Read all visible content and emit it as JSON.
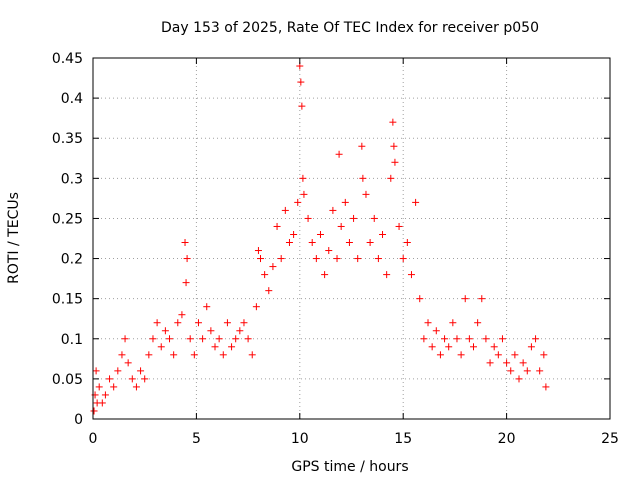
{
  "chart_data": {
    "type": "scatter",
    "title": "Day 153 of 2025, Rate Of TEC Index for receiver p050",
    "xlabel": "GPS time / hours",
    "ylabel": "ROTI / TECUs",
    "xlim": [
      0,
      25
    ],
    "ylim": [
      0,
      0.45
    ],
    "xticks": [
      0,
      5,
      10,
      15,
      20,
      25
    ],
    "xtick_labels": [
      "0",
      "5",
      "10",
      "15",
      "20",
      "25"
    ],
    "yticks": [
      0,
      0.05,
      0.1,
      0.15,
      0.2,
      0.25,
      0.3,
      0.35,
      0.4,
      0.45
    ],
    "ytick_labels": [
      "0",
      "0.05",
      "0.1",
      "0.15",
      "0.2",
      "0.25",
      "0.3",
      "0.35",
      "0.4",
      "0.45"
    ],
    "grid": true,
    "marker": "+",
    "color": "#ff0000",
    "series": [
      {
        "name": "ROTI",
        "x": [
          0.05,
          0.1,
          0.15,
          0.2,
          0.3,
          0.45,
          0.6,
          0.8,
          1.0,
          1.2,
          1.4,
          1.55,
          1.7,
          1.9,
          2.1,
          2.3,
          2.5,
          2.7,
          2.9,
          3.1,
          3.3,
          3.5,
          3.7,
          3.9,
          4.1,
          4.3,
          4.45,
          4.5,
          4.55,
          4.7,
          4.9,
          5.1,
          5.3,
          5.5,
          5.7,
          5.9,
          6.1,
          6.3,
          6.5,
          6.7,
          6.9,
          7.1,
          7.3,
          7.5,
          7.7,
          7.9,
          8.0,
          8.1,
          8.3,
          8.5,
          8.7,
          8.9,
          9.1,
          9.3,
          9.5,
          9.7,
          9.9,
          10.0,
          10.05,
          10.1,
          10.15,
          10.2,
          10.4,
          10.6,
          10.8,
          11.0,
          11.2,
          11.4,
          11.6,
          11.8,
          11.9,
          12.0,
          12.2,
          12.4,
          12.6,
          12.8,
          13.0,
          13.05,
          13.2,
          13.4,
          13.6,
          13.8,
          14.0,
          14.2,
          14.4,
          14.5,
          14.55,
          14.6,
          14.8,
          15.0,
          15.2,
          15.4,
          15.6,
          15.8,
          16.0,
          16.2,
          16.4,
          16.6,
          16.8,
          17.0,
          17.2,
          17.4,
          17.6,
          17.8,
          18.0,
          18.2,
          18.4,
          18.6,
          18.8,
          19.0,
          19.2,
          19.4,
          19.6,
          19.8,
          20.0,
          20.2,
          20.4,
          20.6,
          20.8,
          21.0,
          21.2,
          21.4,
          21.6,
          21.8,
          21.9
        ],
        "y": [
          0.01,
          0.03,
          0.06,
          0.02,
          0.04,
          0.02,
          0.03,
          0.05,
          0.04,
          0.06,
          0.08,
          0.1,
          0.07,
          0.05,
          0.04,
          0.06,
          0.05,
          0.08,
          0.1,
          0.12,
          0.09,
          0.11,
          0.1,
          0.08,
          0.12,
          0.13,
          0.22,
          0.17,
          0.2,
          0.1,
          0.08,
          0.12,
          0.1,
          0.14,
          0.11,
          0.09,
          0.1,
          0.08,
          0.12,
          0.09,
          0.1,
          0.11,
          0.12,
          0.1,
          0.08,
          0.14,
          0.21,
          0.2,
          0.18,
          0.16,
          0.19,
          0.24,
          0.2,
          0.26,
          0.22,
          0.23,
          0.27,
          0.44,
          0.42,
          0.39,
          0.3,
          0.28,
          0.25,
          0.22,
          0.2,
          0.23,
          0.18,
          0.21,
          0.26,
          0.2,
          0.33,
          0.24,
          0.27,
          0.22,
          0.25,
          0.2,
          0.34,
          0.3,
          0.28,
          0.22,
          0.25,
          0.2,
          0.23,
          0.18,
          0.3,
          0.37,
          0.34,
          0.32,
          0.24,
          0.2,
          0.22,
          0.18,
          0.27,
          0.15,
          0.1,
          0.12,
          0.09,
          0.11,
          0.08,
          0.1,
          0.09,
          0.12,
          0.1,
          0.08,
          0.15,
          0.1,
          0.09,
          0.12,
          0.15,
          0.1,
          0.07,
          0.09,
          0.08,
          0.1,
          0.07,
          0.06,
          0.08,
          0.05,
          0.07,
          0.06,
          0.09,
          0.1,
          0.06,
          0.08,
          0.04
        ]
      }
    ]
  }
}
